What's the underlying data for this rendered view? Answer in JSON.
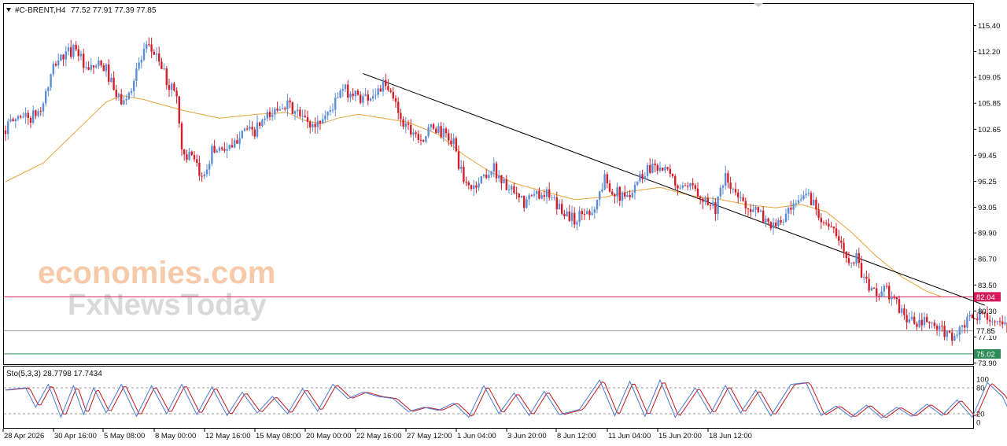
{
  "header": {
    "symbol": "#C-BRENT,H4",
    "ohlc": "77.52 77.91 77.39 77.85"
  },
  "watermark": {
    "line1": "economies.com",
    "line2": "FxNewsToday"
  },
  "indicator": {
    "label": "Sto(5,3,3) 28.7798 17.7434",
    "scale": [
      "100",
      "80",
      "20",
      "0"
    ]
  },
  "levels": {
    "resistance": "82.04",
    "current": "77.85",
    "support": "75.02",
    "resistance_color": "#d6195a",
    "support_color": "#2e8b57",
    "current_color": "#9a9a9a"
  },
  "colors": {
    "bull": "#5b8ed6",
    "bear": "#d51f2a",
    "ma": "#e8a23a",
    "trendline": "#000000",
    "sto_main": "#4a78d0",
    "sto_signal": "#c4161c"
  },
  "chart_data": [
    {
      "type": "candlestick",
      "title": "#C-BRENT,H4",
      "y_ticks": [
        115.4,
        112.2,
        109.05,
        105.85,
        102.65,
        99.45,
        96.25,
        93.05,
        89.9,
        86.7,
        83.5,
        80.3,
        77.1,
        73.9
      ],
      "y_tick_labels": [
        "115.40",
        "112.20",
        "109.05",
        "105.85",
        "102.65",
        "99.45",
        "96.25",
        "93.05",
        "89.90",
        "86.70",
        "83.50",
        "80.30",
        "77.10",
        "73.90"
      ],
      "ylim": [
        73.9,
        115.4
      ],
      "x_labels": [
        "28 Apr 2026",
        "30 Apr 16:00",
        "5 May 08:00",
        "8 May 00:00",
        "12 May 16:00",
        "15 May 08:00",
        "20 May 00:00",
        "22 May 16:00",
        "27 May 12:00",
        "1 Jun 04:00",
        "3 Jun 20:00",
        "8 Jun 12:00",
        "11 Jun 04:00",
        "15 Jun 20:00",
        "18 Jun 12:00"
      ],
      "last": {
        "open": 77.52,
        "high": 77.91,
        "low": 77.39,
        "close": 77.85
      },
      "close_path": [
        [
          0,
          102.8
        ],
        [
          6,
          104.5
        ],
        [
          10,
          104.0
        ],
        [
          14,
          105.0
        ],
        [
          20,
          111.0
        ],
        [
          25,
          112.0
        ],
        [
          28,
          113.0
        ],
        [
          32,
          109.5
        ],
        [
          36,
          110.5
        ],
        [
          40,
          110.0
        ],
        [
          44,
          106.5
        ],
        [
          48,
          106.0
        ],
        [
          52,
          110.0
        ],
        [
          56,
          112.5
        ],
        [
          60,
          112.0
        ],
        [
          64,
          108.5
        ],
        [
          68,
          107.0
        ],
        [
          70,
          100.0
        ],
        [
          74,
          99.0
        ],
        [
          78,
          96.5
        ],
        [
          82,
          100.0
        ],
        [
          86,
          100.5
        ],
        [
          90,
          100.0
        ],
        [
          94,
          103.0
        ],
        [
          98,
          102.0
        ],
        [
          102,
          103.5
        ],
        [
          106,
          104.5
        ],
        [
          110,
          106.0
        ],
        [
          114,
          105.0
        ],
        [
          118,
          104.0
        ],
        [
          122,
          103.0
        ],
        [
          126,
          104.0
        ],
        [
          130,
          105.5
        ],
        [
          134,
          107.5
        ],
        [
          138,
          107.0
        ],
        [
          142,
          106.5
        ],
        [
          146,
          107.0
        ],
        [
          150,
          108.0
        ],
        [
          154,
          106.5
        ],
        [
          158,
          103.5
        ],
        [
          162,
          102.5
        ],
        [
          166,
          101.5
        ],
        [
          170,
          103.0
        ],
        [
          174,
          102.0
        ],
        [
          178,
          101.0
        ],
        [
          182,
          96.0
        ],
        [
          186,
          95.5
        ],
        [
          190,
          97.0
        ],
        [
          194,
          97.8
        ],
        [
          198,
          96.0
        ],
        [
          202,
          94.5
        ],
        [
          206,
          93.5
        ],
        [
          210,
          94.5
        ],
        [
          214,
          95.0
        ],
        [
          218,
          93.5
        ],
        [
          222,
          92.5
        ],
        [
          226,
          91.5
        ],
        [
          230,
          92.5
        ],
        [
          234,
          93.0
        ],
        [
          238,
          96.5
        ],
        [
          242,
          95.0
        ],
        [
          246,
          94.0
        ],
        [
          250,
          96.0
        ],
        [
          254,
          97.5
        ],
        [
          258,
          98.5
        ],
        [
          262,
          97.5
        ],
        [
          266,
          96.0
        ],
        [
          270,
          95.0
        ],
        [
          274,
          95.5
        ],
        [
          278,
          94.0
        ],
        [
          282,
          93.0
        ],
        [
          286,
          96.5
        ],
        [
          290,
          94.5
        ],
        [
          294,
          93.5
        ],
        [
          298,
          92.5
        ],
        [
          302,
          91.5
        ],
        [
          306,
          90.5
        ],
        [
          310,
          92.0
        ],
        [
          314,
          93.0
        ],
        [
          318,
          95.0
        ],
        [
          322,
          93.0
        ],
        [
          326,
          91.0
        ],
        [
          330,
          89.5
        ],
        [
          334,
          87.0
        ],
        [
          338,
          86.8
        ],
        [
          342,
          83.5
        ],
        [
          346,
          82.5
        ],
        [
          350,
          82.8
        ],
        [
          354,
          81.0
        ],
        [
          358,
          79.5
        ],
        [
          362,
          78.5
        ],
        [
          366,
          79.0
        ],
        [
          370,
          78.0
        ],
        [
          374,
          77.5
        ],
        [
          378,
          77.2
        ],
        [
          382,
          79.0
        ],
        [
          386,
          79.5
        ],
        [
          390,
          80.0
        ],
        [
          394,
          78.5
        ],
        [
          398,
          78.0
        ],
        [
          402,
          77.6
        ],
        [
          404,
          77.85
        ]
      ],
      "moving_average": [
        [
          0,
          96.2
        ],
        [
          15,
          98.5
        ],
        [
          30,
          103.0
        ],
        [
          40,
          106.0
        ],
        [
          46,
          106.8
        ],
        [
          55,
          106.3
        ],
        [
          70,
          105.0
        ],
        [
          85,
          104.0
        ],
        [
          100,
          104.5
        ],
        [
          112,
          104.7
        ],
        [
          118,
          103.8
        ],
        [
          125,
          103.3
        ],
        [
          132,
          104.0
        ],
        [
          140,
          104.5
        ],
        [
          150,
          104.0
        ],
        [
          160,
          103.5
        ],
        [
          172,
          102.0
        ],
        [
          182,
          99.5
        ],
        [
          192,
          97.5
        ],
        [
          202,
          96.0
        ],
        [
          214,
          95.0
        ],
        [
          226,
          94.0
        ],
        [
          238,
          94.3
        ],
        [
          248,
          95.0
        ],
        [
          260,
          95.5
        ],
        [
          272,
          94.5
        ],
        [
          284,
          94.0
        ],
        [
          296,
          93.3
        ],
        [
          306,
          93.0
        ],
        [
          316,
          93.4
        ],
        [
          326,
          92.5
        ],
        [
          336,
          90.0
        ],
        [
          346,
          87.0
        ],
        [
          356,
          84.5
        ],
        [
          366,
          82.7
        ],
        [
          372,
          82.04
        ]
      ],
      "trendline": {
        "from": [
          142,
          109.5
        ],
        "to": [
          389,
          81.0
        ]
      },
      "horizontal_levels": [
        82.04,
        77.85,
        75.02
      ]
    },
    {
      "type": "line",
      "title": "Sto(5,3,3) 28.7798 17.7434",
      "ylim": [
        0,
        100
      ],
      "levels": [
        20,
        80
      ],
      "series": [
        {
          "name": "main",
          "last": 28.7798
        },
        {
          "name": "signal",
          "last": 17.7434
        }
      ]
    }
  ]
}
